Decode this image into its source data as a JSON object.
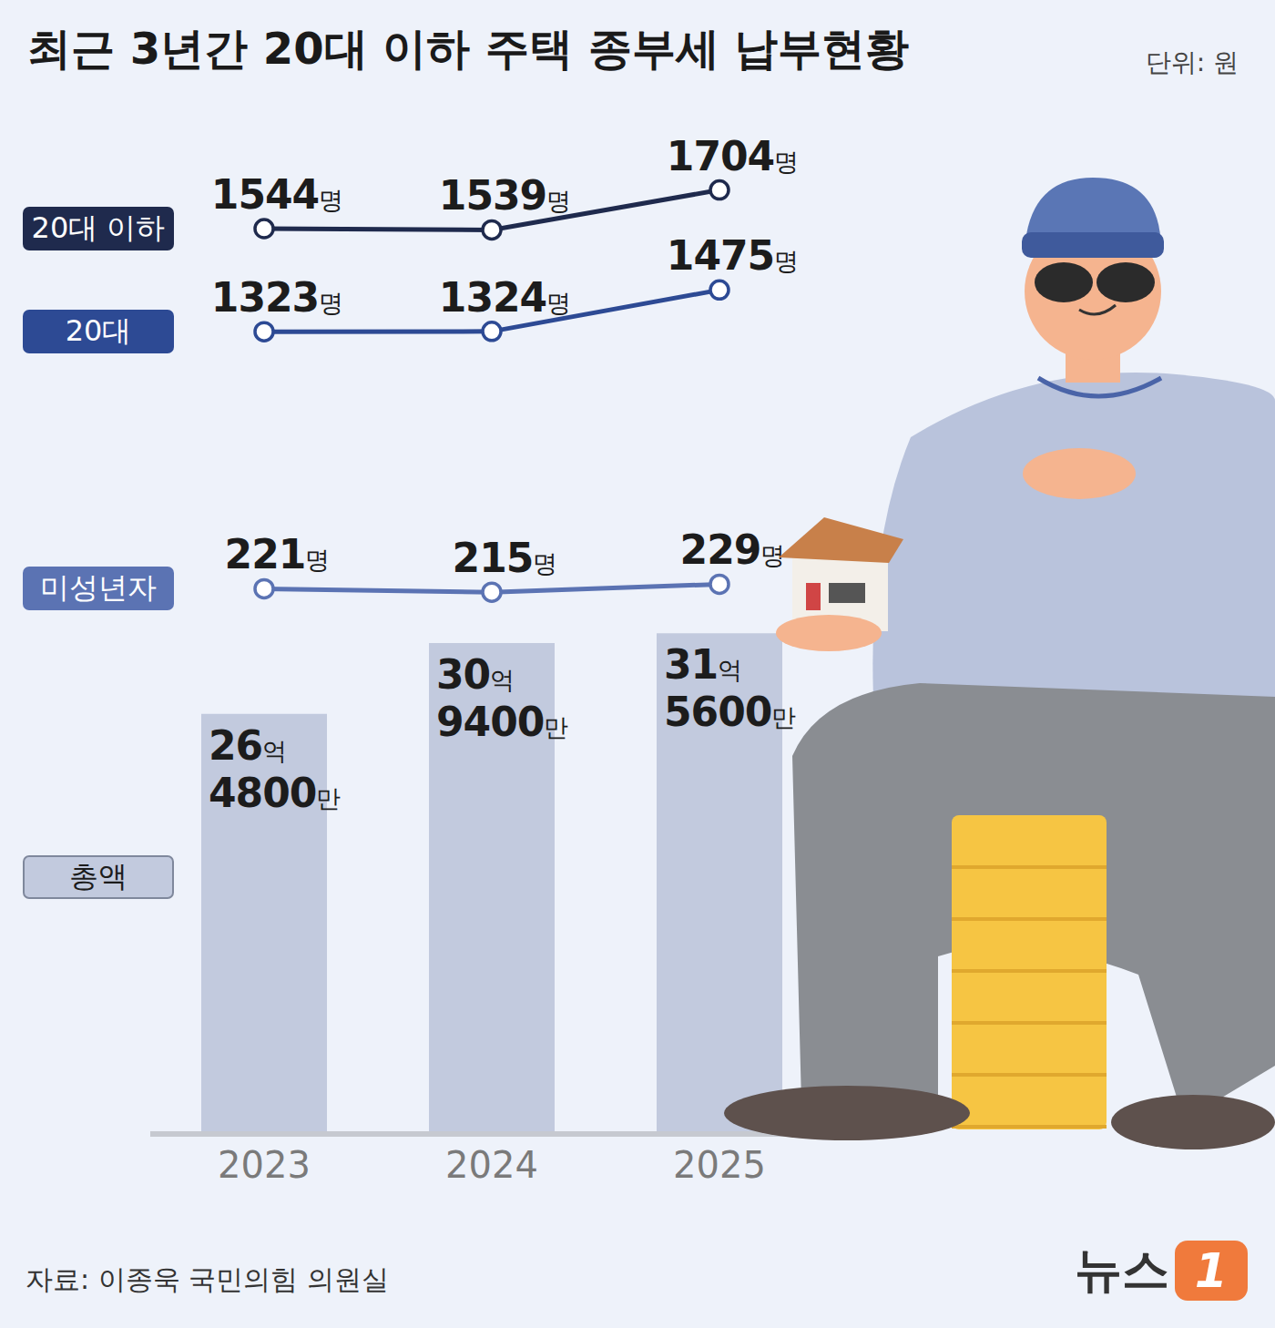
{
  "chart_data": {
    "type": "combo",
    "title": "최근 3년간 20대 이하 주택 종부세 납부현황",
    "unit": "단위: 원",
    "source": "자료: 이종욱 국민의힘 의원실",
    "logo": "뉴스1",
    "categories": [
      "2023",
      "2024",
      "2025"
    ],
    "series": [
      {
        "name": "20대 이하",
        "type": "line",
        "color": "#1f2a4d",
        "marker": "circle",
        "values": [
          1544,
          1539,
          1704
        ],
        "value_labels": [
          "1544명",
          "1539명",
          "1704명"
        ],
        "ylim": [
          -2200,
          2000
        ]
      },
      {
        "name": "20대",
        "type": "line",
        "color": "#2d4a94",
        "marker": "circle",
        "values": [
          1323,
          1324,
          1475
        ],
        "value_labels": [
          "1323명",
          "1324명",
          "1475명"
        ],
        "ylim": [
          -1600,
          2100
        ]
      },
      {
        "name": "미성년자",
        "type": "line",
        "color": "#5b73b3",
        "marker": "circle",
        "values": [
          221,
          215,
          229
        ],
        "value_labels": [
          "221명",
          "215명",
          "229명"
        ],
        "ylim": [
          -740,
          1050
        ]
      },
      {
        "name": "총액",
        "type": "bar",
        "color": "#c2cade",
        "values": [
          2648000000,
          3094000000,
          3156000000
        ],
        "value_labels": [
          "26억 4800만",
          "30억 9400만",
          "31억 5600만"
        ],
        "ylim": [
          0,
          6400000000
        ]
      }
    ],
    "data_labels": true,
    "tick_labels": "x",
    "legend": "left",
    "grid": false
  }
}
